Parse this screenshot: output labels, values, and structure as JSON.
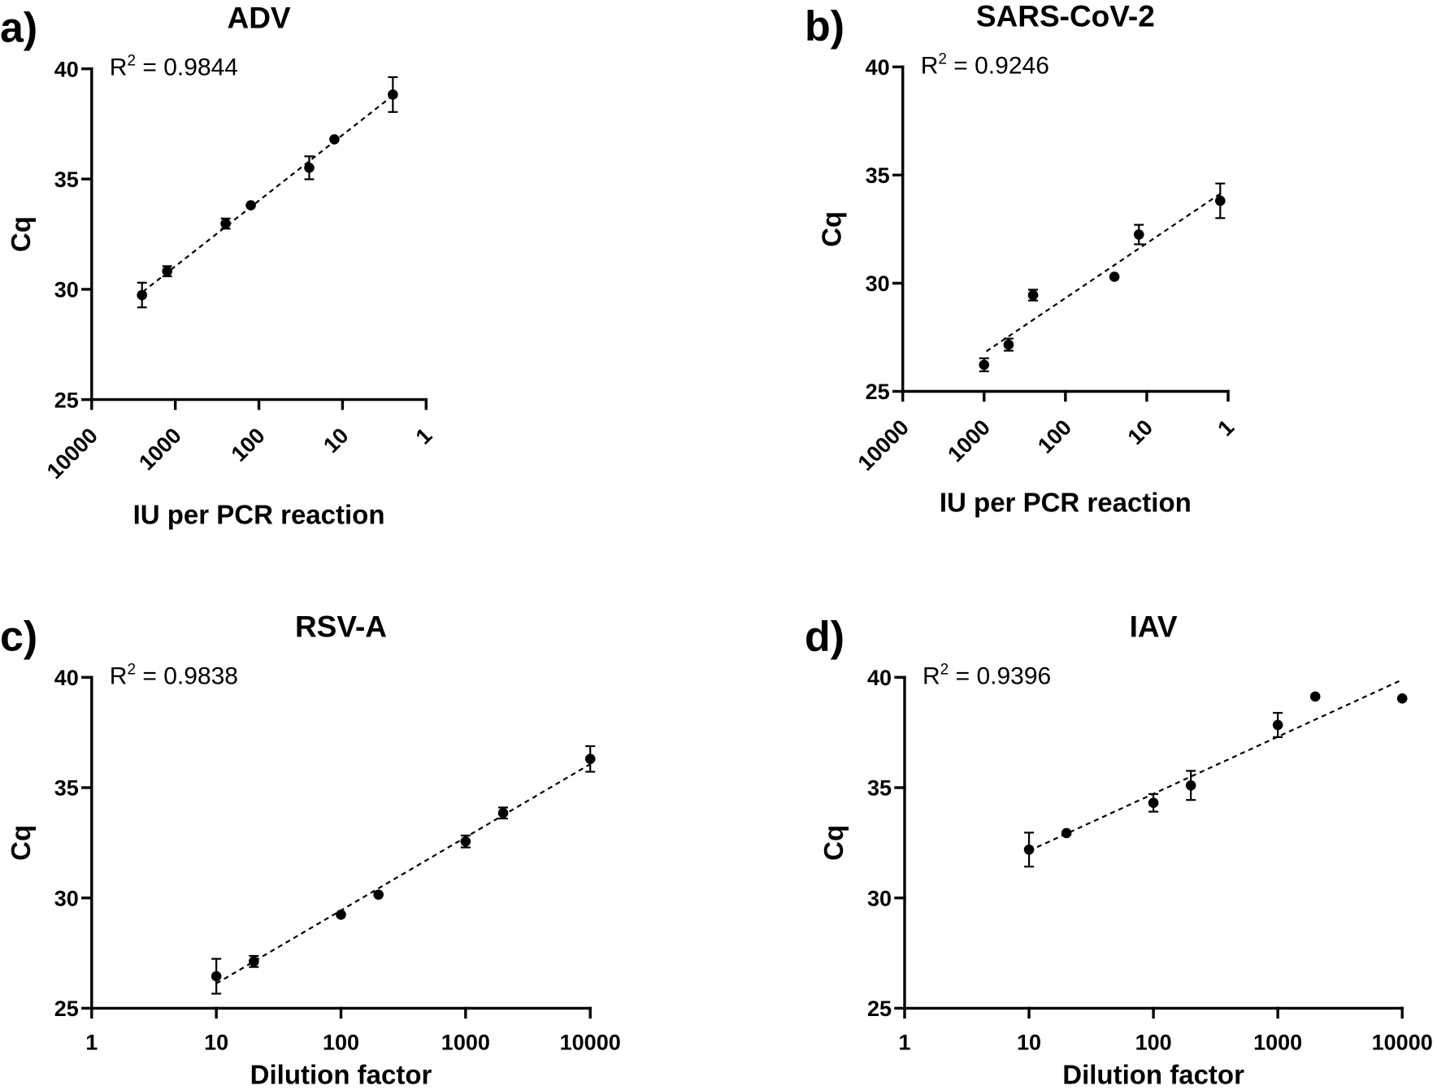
{
  "chart_data": [
    {
      "type": "scatter",
      "panel_label": "a)",
      "title": "ADV",
      "xlabel": "IU per PCR reaction",
      "ylabel": "Cq",
      "annotation": {
        "base": "R",
        "sup": "2",
        "value": " = 0.9844"
      },
      "xlim": [
        10000,
        1
      ],
      "ylim": [
        25,
        40
      ],
      "xticks": [
        10000,
        1000,
        100,
        10,
        1
      ],
      "yticks": [
        25,
        30,
        35,
        40
      ],
      "x": [
        2500,
        1250,
        250,
        125,
        25,
        12.5,
        2.5
      ],
      "y": [
        29.74,
        30.82,
        32.98,
        33.81,
        35.51,
        36.8,
        38.83
      ],
      "yerr": [
        0.56,
        0.23,
        0.23,
        0.1,
        0.52,
        0.1,
        0.79
      ]
    },
    {
      "type": "scatter",
      "panel_label": "b)",
      "title": "SARS-CoV-2",
      "xlabel": "IU per PCR reaction",
      "ylabel": "Cq",
      "annotation": {
        "base": "R",
        "sup": "2",
        "value": " = 0.9246"
      },
      "xlim": [
        10000,
        1
      ],
      "ylim": [
        25,
        40
      ],
      "xticks": [
        10000,
        1000,
        100,
        10,
        1
      ],
      "yticks": [
        25,
        30,
        35,
        40
      ],
      "x": [
        1000,
        500,
        250,
        25,
        12.5,
        1.25
      ],
      "y": [
        26.23,
        27.16,
        29.45,
        30.3,
        32.25,
        33.81
      ],
      "yerr": [
        0.3,
        0.28,
        0.25,
        0.1,
        0.45,
        0.8
      ]
    },
    {
      "type": "scatter",
      "panel_label": "c)",
      "title": "RSV-A",
      "xlabel": "Dilution factor",
      "ylabel": "Cq",
      "annotation": {
        "base": "R",
        "sup": "2",
        "value": " = 0.9838"
      },
      "xlim": [
        1,
        10000
      ],
      "ylim": [
        25,
        40
      ],
      "xticks": [
        1,
        10,
        100,
        1000,
        10000
      ],
      "yticks": [
        25,
        30,
        35,
        40
      ],
      "x": [
        10,
        20,
        100,
        200,
        1000,
        2000,
        10000
      ],
      "y": [
        26.45,
        27.12,
        29.24,
        30.15,
        32.56,
        33.85,
        36.3
      ],
      "yerr": [
        0.79,
        0.25,
        0.1,
        0.1,
        0.27,
        0.25,
        0.58
      ]
    },
    {
      "type": "scatter",
      "panel_label": "d)",
      "title": "IAV",
      "xlabel": "Dilution factor",
      "ylabel": "Cq",
      "annotation": {
        "base": "R",
        "sup": "2",
        "value": " = 0.9396"
      },
      "xlim": [
        1,
        10000
      ],
      "ylim": [
        25,
        40
      ],
      "xticks": [
        1,
        10,
        100,
        1000,
        10000
      ],
      "yticks": [
        25,
        30,
        35,
        40
      ],
      "x": [
        10,
        20,
        100,
        200,
        1000,
        2000,
        10000
      ],
      "y": [
        32.19,
        32.94,
        34.31,
        35.1,
        37.84,
        39.13,
        39.04
      ],
      "yerr": [
        0.77,
        0.1,
        0.4,
        0.66,
        0.55,
        0.1,
        0.1
      ]
    }
  ]
}
